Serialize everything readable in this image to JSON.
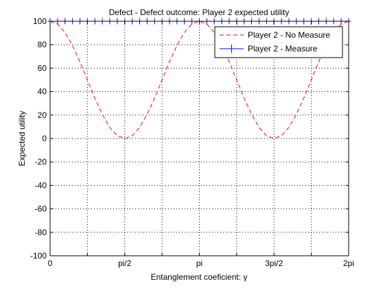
{
  "chart_data": {
    "type": "line",
    "title": "Defect - Defect outcome: Player 2 expected utility",
    "xlabel": "Entanglement coeficient: γ",
    "ylabel": "Expected utility",
    "xlim": [
      0,
      6.2832
    ],
    "ylim": [
      -100,
      100
    ],
    "x_ticks": [
      {
        "value": 0,
        "label": "0"
      },
      {
        "value": 1.5708,
        "label": "pi/2"
      },
      {
        "value": 3.1416,
        "label": "pi"
      },
      {
        "value": 4.7124,
        "label": "3pi/2"
      },
      {
        "value": 6.2832,
        "label": "2pi"
      }
    ],
    "x_minor_grid": [
      0.7854,
      2.3562,
      3.927,
      5.4978
    ],
    "y_ticks": [
      -100,
      -80,
      -60,
      -40,
      -20,
      0,
      20,
      40,
      60,
      80,
      100
    ],
    "grid": true,
    "legend_position": "top-right",
    "series": [
      {
        "name": "Player 2 - No Measure",
        "style": "dashed",
        "color": "#ff0000",
        "marker": "none",
        "formula": "100*cos^2(gamma)",
        "x": [
          0,
          0.1571,
          0.3142,
          0.4712,
          0.6283,
          0.7854,
          0.9425,
          1.0996,
          1.2566,
          1.4137,
          1.5708,
          1.7279,
          1.885,
          2.042,
          2.1991,
          2.3562,
          2.5133,
          2.6704,
          2.8274,
          2.9845,
          3.1416,
          3.2987,
          3.4558,
          3.6128,
          3.7699,
          3.927,
          4.0841,
          4.2412,
          4.3982,
          4.5553,
          4.7124,
          4.8695,
          5.0265,
          5.1836,
          5.3407,
          5.4978,
          5.6549,
          5.8119,
          5.969,
          6.1261,
          6.2832
        ],
        "y": [
          100,
          97.6,
          90.5,
          79.4,
          65.5,
          50,
          34.5,
          20.6,
          9.5,
          2.4,
          0,
          2.4,
          9.5,
          20.6,
          34.5,
          50,
          65.5,
          79.4,
          90.5,
          97.6,
          100,
          97.6,
          90.5,
          79.4,
          65.5,
          50,
          34.5,
          20.6,
          9.5,
          2.4,
          0,
          2.4,
          9.5,
          20.6,
          34.5,
          50,
          65.5,
          79.4,
          90.5,
          97.6,
          100
        ]
      },
      {
        "name": "Player 2 - Measure",
        "style": "solid",
        "color": "#0000ff",
        "marker": "+",
        "x": [
          0,
          0.1571,
          0.3142,
          0.4712,
          0.6283,
          0.7854,
          0.9425,
          1.0996,
          1.2566,
          1.4137,
          1.5708,
          1.7279,
          1.885,
          2.042,
          2.1991,
          2.3562,
          2.5133,
          2.6704,
          2.8274,
          2.9845,
          3.1416,
          3.2987,
          3.4558,
          3.6128,
          3.7699,
          3.927,
          4.0841,
          4.2412,
          4.3982,
          4.5553,
          4.7124,
          4.8695,
          5.0265,
          5.1836,
          5.3407,
          5.4978,
          5.6549,
          5.8119,
          5.969,
          6.1261,
          6.2832
        ],
        "y": [
          100,
          100,
          100,
          100,
          100,
          100,
          100,
          100,
          100,
          100,
          100,
          100,
          100,
          100,
          100,
          100,
          100,
          100,
          100,
          100,
          100,
          100,
          100,
          100,
          100,
          100,
          100,
          100,
          100,
          100,
          100,
          100,
          100,
          100,
          100,
          100,
          100,
          100,
          100,
          100,
          100
        ]
      }
    ]
  }
}
